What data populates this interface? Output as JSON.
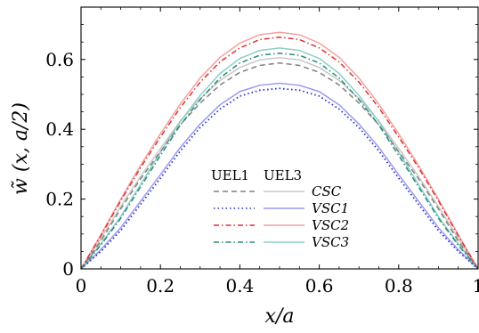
{
  "chart_data": {
    "type": "line",
    "xlabel": "x/a",
    "ylabel": "w̃ (x, a/2)",
    "xlim": [
      0,
      1
    ],
    "ylim": [
      0,
      0.75
    ],
    "xticks": [
      0,
      0.2,
      0.4,
      0.6,
      0.8,
      1
    ],
    "xtick_labels": [
      "0",
      "0.2",
      "0.4",
      "0.6",
      "0.8",
      "1"
    ],
    "yticks": [
      0,
      0.2,
      0.4,
      0.6
    ],
    "ytick_labels": [
      "0",
      "0.2",
      "0.4",
      "0.6"
    ],
    "grid": false,
    "legend": {
      "placement": "bottom-center",
      "column_headers": [
        "UEL1",
        "UEL3"
      ],
      "rows": [
        "CSC",
        "VSC1",
        "VSC2",
        "VSC3"
      ]
    },
    "x": [
      0,
      0.05,
      0.1,
      0.15,
      0.2,
      0.25,
      0.3,
      0.35,
      0.4,
      0.45,
      0.5,
      0.55,
      0.6,
      0.65,
      0.7,
      0.75,
      0.8,
      0.85,
      0.9,
      0.95,
      1
    ],
    "series": [
      {
        "name": "CSC",
        "element": "UEL1",
        "color": "#808080",
        "dash": "dashed",
        "values": [
          0,
          0.08,
          0.172,
          0.258,
          0.336,
          0.413,
          0.475,
          0.527,
          0.563,
          0.583,
          0.59,
          0.583,
          0.563,
          0.527,
          0.475,
          0.413,
          0.336,
          0.258,
          0.172,
          0.08,
          0
        ]
      },
      {
        "name": "CSC",
        "element": "UEL3",
        "color": "#c8c8c8",
        "dash": "solid",
        "values": [
          0,
          0.087,
          0.179,
          0.265,
          0.345,
          0.424,
          0.488,
          0.54,
          0.577,
          0.599,
          0.605,
          0.599,
          0.577,
          0.54,
          0.488,
          0.424,
          0.345,
          0.265,
          0.179,
          0.087,
          0
        ]
      },
      {
        "name": "VSC1",
        "element": "UEL1",
        "color": "#2a2ad0",
        "dash": "dotted",
        "values": [
          0,
          0.05,
          0.11,
          0.185,
          0.26,
          0.338,
          0.405,
          0.458,
          0.495,
          0.512,
          0.517,
          0.512,
          0.495,
          0.458,
          0.405,
          0.338,
          0.26,
          0.185,
          0.11,
          0.05,
          0
        ]
      },
      {
        "name": "VSC1",
        "element": "UEL3",
        "color": "#9a9aee",
        "dash": "solid",
        "values": [
          0,
          0.055,
          0.118,
          0.194,
          0.27,
          0.348,
          0.415,
          0.47,
          0.508,
          0.526,
          0.532,
          0.526,
          0.508,
          0.47,
          0.415,
          0.348,
          0.27,
          0.194,
          0.118,
          0.055,
          0
        ]
      },
      {
        "name": "VSC2",
        "element": "UEL1",
        "color": "#e03030",
        "dash": "dashdot",
        "values": [
          0,
          0.095,
          0.195,
          0.29,
          0.378,
          0.462,
          0.535,
          0.593,
          0.633,
          0.657,
          0.664,
          0.657,
          0.633,
          0.593,
          0.535,
          0.462,
          0.378,
          0.29,
          0.195,
          0.095,
          0
        ]
      },
      {
        "name": "VSC2",
        "element": "UEL3",
        "color": "#f4a0a0",
        "dash": "solid",
        "values": [
          0,
          0.098,
          0.2,
          0.297,
          0.387,
          0.472,
          0.547,
          0.606,
          0.647,
          0.671,
          0.678,
          0.671,
          0.647,
          0.606,
          0.547,
          0.472,
          0.387,
          0.297,
          0.2,
          0.098,
          0
        ]
      },
      {
        "name": "VSC3",
        "element": "UEL1",
        "color": "#2a8a7a",
        "dash": "dashdot",
        "values": [
          0,
          0.068,
          0.145,
          0.235,
          0.325,
          0.412,
          0.485,
          0.547,
          0.59,
          0.612,
          0.618,
          0.612,
          0.59,
          0.547,
          0.485,
          0.412,
          0.325,
          0.235,
          0.145,
          0.068,
          0
        ]
      },
      {
        "name": "VSC3",
        "element": "UEL3",
        "color": "#8ccfc4",
        "dash": "solid",
        "values": [
          0,
          0.072,
          0.15,
          0.242,
          0.334,
          0.422,
          0.497,
          0.56,
          0.603,
          0.626,
          0.633,
          0.626,
          0.603,
          0.56,
          0.497,
          0.422,
          0.334,
          0.242,
          0.15,
          0.072,
          0
        ]
      }
    ]
  }
}
